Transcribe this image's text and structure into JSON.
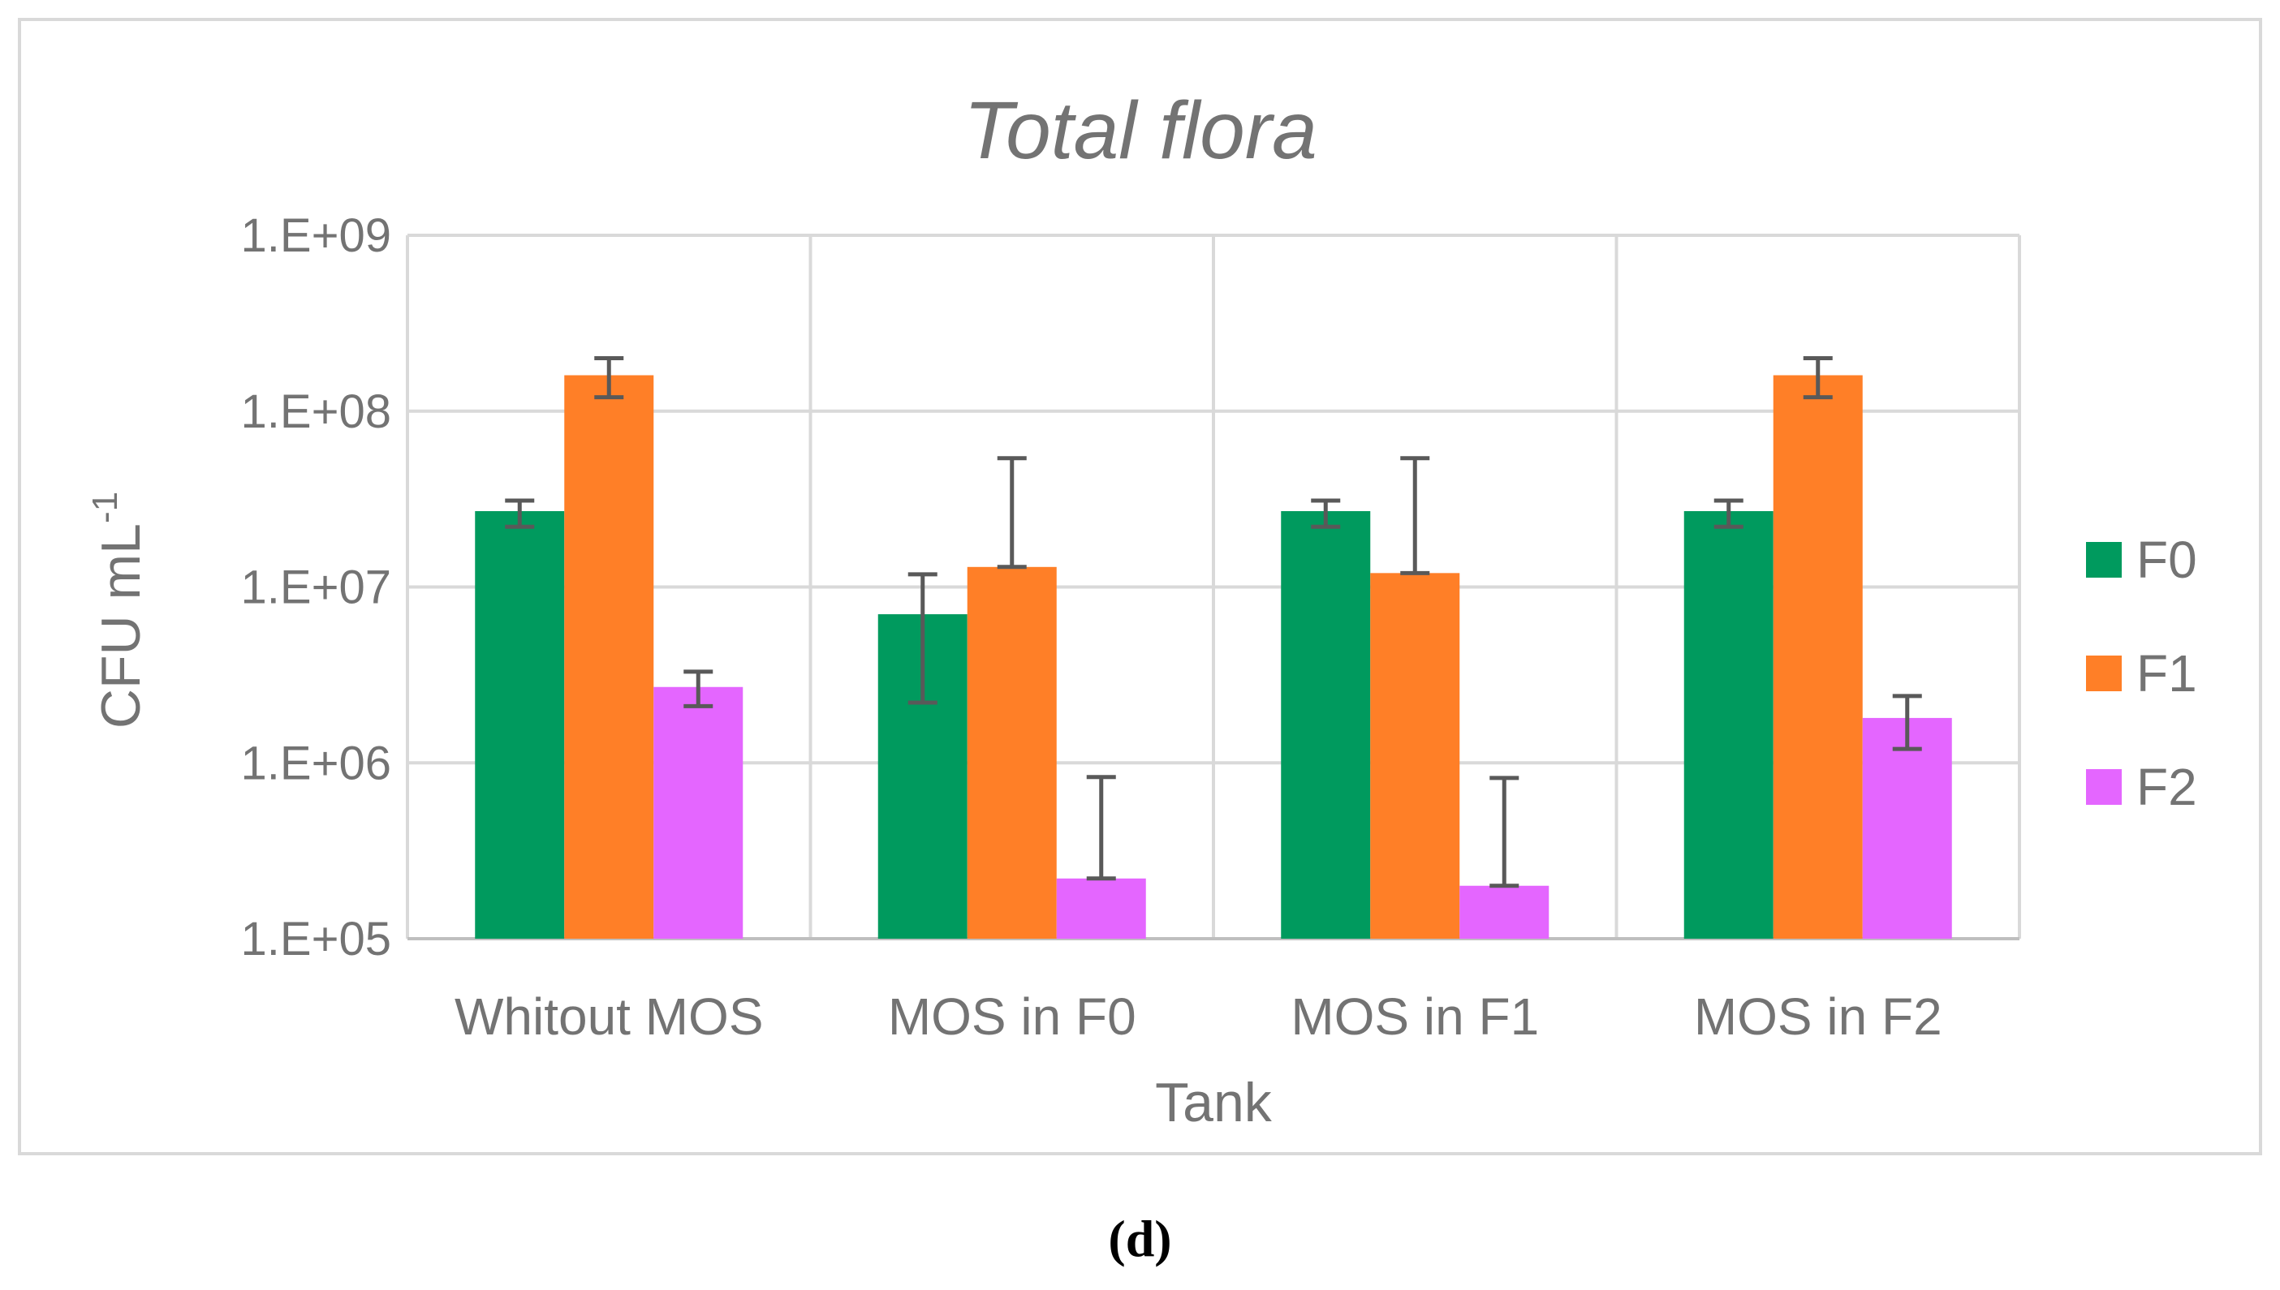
{
  "chart_data": {
    "type": "bar",
    "title": "Total flora",
    "xlabel": "Tank",
    "ylabel": "CFU mL",
    "ylabel_sup": "-1",
    "yscale": "log",
    "ylim": [
      100000,
      1000000000
    ],
    "yticks": [
      {
        "value": 100000,
        "label": "1.E+05"
      },
      {
        "value": 1000000,
        "label": "1.E+06"
      },
      {
        "value": 10000000,
        "label": "1.E+07"
      },
      {
        "value": 100000000,
        "label": "1.E+08"
      },
      {
        "value": 1000000000,
        "label": "1.E+09"
      }
    ],
    "categories": [
      "Whitout MOS",
      "MOS in F0",
      "MOS in F1",
      "MOS in F2"
    ],
    "grid": true,
    "legend_position": "right",
    "series": [
      {
        "name": "F0",
        "color": "#009a5e",
        "values": [
          27000000,
          7000000,
          27000000,
          27000000
        ],
        "err_low": [
          22000000,
          2200000,
          22000000,
          22000000
        ],
        "err_high": [
          31000000,
          11800000,
          31000000,
          31000000
        ]
      },
      {
        "name": "F1",
        "color": "#ff7f27",
        "values": [
          160000000,
          13000000,
          12000000,
          160000000
        ],
        "err_low": [
          120000000,
          13000000,
          12000000,
          120000000
        ],
        "err_high": [
          200000000,
          54000000,
          54000000,
          200000000
        ]
      },
      {
        "name": "F2",
        "color": "#e466ff",
        "values": [
          2700000,
          220000,
          200000,
          1800000
        ],
        "err_low": [
          2100000,
          220000,
          200000,
          1200000
        ],
        "err_high": [
          3300000,
          830000,
          820000,
          2400000
        ]
      }
    ]
  },
  "caption": "(d)"
}
